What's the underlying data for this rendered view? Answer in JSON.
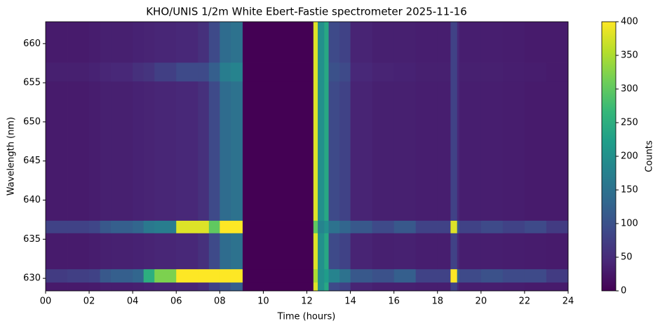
{
  "chart_data": {
    "type": "heatmap",
    "title": "KHO/UNIS 1/2m White Ebert-Fastie spectrometer 2025-11-16",
    "x_label": "Time (hours)",
    "y_label": "Wavelength (nm)",
    "colorbar_label": "Counts",
    "colormap": "viridis",
    "xlim": [
      0,
      24
    ],
    "ylim": [
      628.4,
      662.8
    ],
    "xticks": [
      {
        "value": 0,
        "label": "00"
      },
      {
        "value": 2,
        "label": "02"
      },
      {
        "value": 4,
        "label": "04"
      },
      {
        "value": 6,
        "label": "06"
      },
      {
        "value": 8,
        "label": "08"
      },
      10,
      12,
      14,
      16,
      18,
      20,
      22,
      24
    ],
    "yticks": [
      630,
      635,
      640,
      645,
      650,
      655,
      660
    ],
    "zlim": [
      0,
      400
    ],
    "zticks": [
      0,
      50,
      100,
      150,
      200,
      250,
      300,
      350,
      400
    ],
    "x_edges": [
      0,
      1,
      2,
      2.5,
      3,
      4,
      4.5,
      5,
      6,
      7,
      7.5,
      8,
      8.5,
      9.05,
      12.3,
      12.5,
      12.8,
      13.0,
      13.5,
      14,
      15,
      16,
      17,
      18,
      18.6,
      18.9,
      19,
      20,
      21,
      22,
      23,
      24
    ],
    "y_edges": [
      628.4,
      629.5,
      631.2,
      635.8,
      637.4,
      655.2,
      657.6,
      662.8
    ],
    "z": [
      [
        28,
        28,
        30,
        33,
        33,
        35,
        38,
        40,
        42,
        50,
        80,
        100,
        120,
        0,
        380,
        200,
        240,
        90,
        80,
        40,
        35,
        35,
        33,
        33,
        80,
        45,
        33,
        33,
        32,
        30,
        30
      ],
      [
        70,
        75,
        80,
        110,
        120,
        130,
        250,
        320,
        420,
        420,
        420,
        420,
        420,
        0,
        350,
        200,
        220,
        180,
        150,
        110,
        100,
        120,
        80,
        80,
        400,
        120,
        90,
        100,
        90,
        90,
        70
      ],
      [
        30,
        30,
        32,
        35,
        36,
        38,
        40,
        42,
        45,
        55,
        90,
        140,
        150,
        0,
        380,
        200,
        240,
        90,
        80,
        40,
        35,
        36,
        33,
        33,
        80,
        45,
        33,
        33,
        32,
        31,
        30
      ],
      [
        80,
        80,
        85,
        110,
        120,
        130,
        160,
        170,
        380,
        380,
        300,
        420,
        420,
        0,
        300,
        180,
        200,
        150,
        130,
        110,
        90,
        110,
        80,
        80,
        380,
        110,
        80,
        90,
        80,
        90,
        70
      ],
      [
        30,
        30,
        32,
        35,
        35,
        38,
        40,
        42,
        45,
        55,
        90,
        140,
        150,
        0,
        380,
        200,
        240,
        90,
        80,
        40,
        35,
        35,
        33,
        33,
        80,
        45,
        33,
        33,
        32,
        30,
        30
      ],
      [
        35,
        35,
        38,
        42,
        45,
        55,
        60,
        75,
        90,
        90,
        120,
        170,
        180,
        0,
        380,
        200,
        240,
        100,
        90,
        45,
        40,
        38,
        35,
        35,
        80,
        45,
        35,
        35,
        33,
        32,
        30
      ],
      [
        30,
        30,
        32,
        35,
        35,
        38,
        40,
        42,
        45,
        55,
        90,
        140,
        150,
        0,
        380,
        200,
        240,
        90,
        80,
        40,
        35,
        35,
        33,
        33,
        80,
        45,
        33,
        33,
        32,
        30,
        30
      ]
    ]
  }
}
